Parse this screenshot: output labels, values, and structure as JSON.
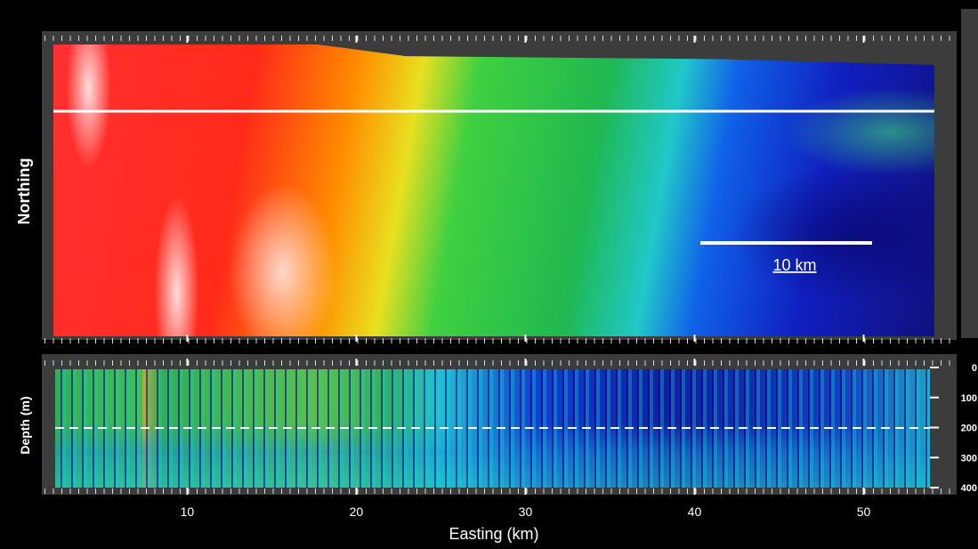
{
  "chart_data": [
    {
      "type": "heatmap",
      "ylabel": "Northing",
      "scale_bar_label": "10 km"
    },
    {
      "type": "heatmap",
      "xlabel": "Easting  (km)",
      "ylabel": "Depth  (m)",
      "xlim": [
        1.4,
        55.5
      ],
      "xticks": [
        10,
        20,
        30,
        40,
        50
      ],
      "ylim": [
        0,
        400
      ],
      "yticks": [
        0,
        100,
        200,
        300,
        400
      ]
    }
  ]
}
